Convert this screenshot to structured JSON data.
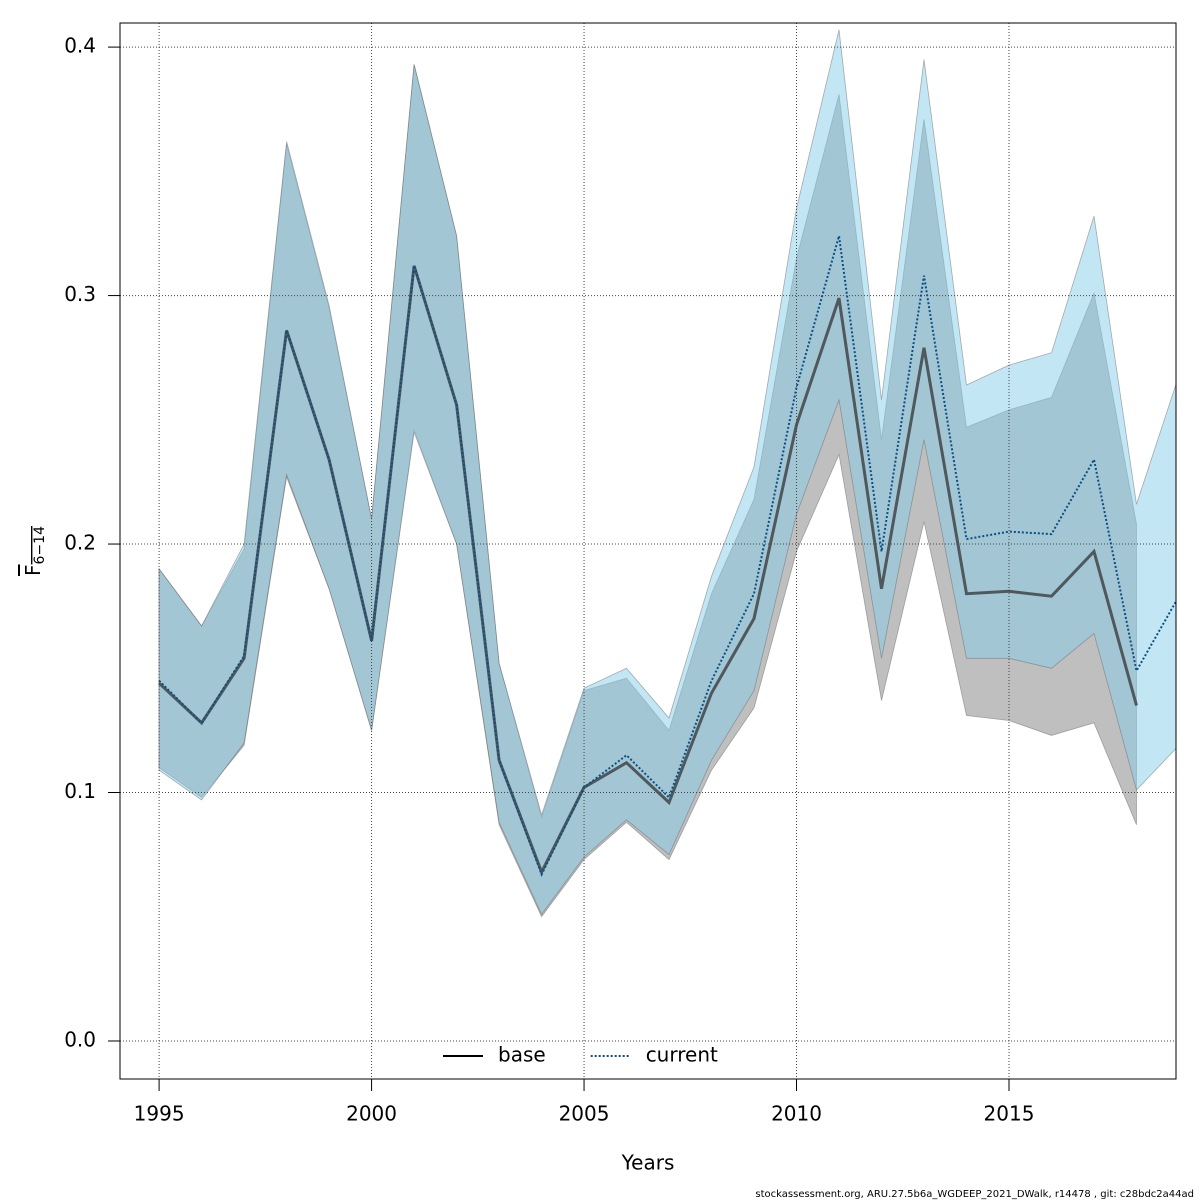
{
  "chart_data": {
    "type": "line",
    "x_label": "Years",
    "y_label": "F",
    "y_label_subscript": "6−14",
    "footer": "stockassessment.org, ARU.27.5b6a_WGDEEP_2021_DWalk, r14478 , git: c28bdc2a44ad",
    "x": [
      1995,
      1996,
      1997,
      1998,
      1999,
      2000,
      2001,
      2002,
      2003,
      2004,
      2005,
      2006,
      2007,
      2008,
      2009,
      2010,
      2011,
      2012,
      2013,
      2014,
      2015,
      2016,
      2017,
      2018,
      2019
    ],
    "series": [
      {
        "name": "base",
        "color": "#333333",
        "band_color": "rgba(128,128,128,0.5)",
        "dash": false,
        "values": [
          0.144,
          0.128,
          0.154,
          0.286,
          0.234,
          0.161,
          0.312,
          0.256,
          0.113,
          0.068,
          0.102,
          0.112,
          0.096,
          0.14,
          0.17,
          0.248,
          0.299,
          0.182,
          0.279,
          0.18,
          0.181,
          0.179,
          0.197,
          0.135,
          null
        ],
        "lower": [
          0.11,
          0.098,
          0.119,
          0.227,
          0.182,
          0.125,
          0.246,
          0.2,
          0.087,
          0.05,
          0.073,
          0.088,
          0.073,
          0.109,
          0.134,
          0.197,
          0.236,
          0.137,
          0.209,
          0.131,
          0.129,
          0.123,
          0.128,
          0.087,
          null
        ],
        "upper": [
          0.19,
          0.167,
          0.198,
          0.361,
          0.295,
          0.21,
          0.393,
          0.324,
          0.152,
          0.09,
          0.141,
          0.146,
          0.125,
          0.18,
          0.218,
          0.315,
          0.381,
          0.242,
          0.371,
          0.247,
          0.254,
          0.259,
          0.301,
          0.208,
          null
        ]
      },
      {
        "name": "current",
        "color": "#0b4f86",
        "band_color": "rgba(135,206,235,0.5)",
        "dash": true,
        "values": [
          0.145,
          0.128,
          0.155,
          0.286,
          0.234,
          0.161,
          0.312,
          0.256,
          0.113,
          0.067,
          0.102,
          0.115,
          0.098,
          0.145,
          0.18,
          0.263,
          0.324,
          0.197,
          0.308,
          0.202,
          0.205,
          0.204,
          0.234,
          0.149,
          0.179
        ],
        "lower": [
          0.109,
          0.097,
          0.12,
          0.228,
          0.182,
          0.125,
          0.245,
          0.2,
          0.088,
          0.051,
          0.074,
          0.089,
          0.075,
          0.113,
          0.141,
          0.212,
          0.258,
          0.154,
          0.242,
          0.154,
          0.154,
          0.15,
          0.164,
          0.101,
          0.119
        ],
        "upper": [
          0.19,
          0.167,
          0.2,
          0.362,
          0.296,
          0.21,
          0.393,
          0.324,
          0.152,
          0.091,
          0.142,
          0.15,
          0.13,
          0.187,
          0.231,
          0.335,
          0.407,
          0.258,
          0.395,
          0.264,
          0.272,
          0.277,
          0.332,
          0.216,
          0.268
        ]
      }
    ],
    "xlim": [
      1994.08,
      2018.93
    ],
    "ylim": [
      -0.0153,
      0.4097
    ],
    "xticks": [
      1995,
      2000,
      2005,
      2010,
      2015
    ],
    "yticks": [
      {
        "value": 0,
        "label": "0.0"
      },
      0.1,
      0.2,
      0.3,
      0.4
    ],
    "grid": true,
    "legend": "bottom"
  }
}
